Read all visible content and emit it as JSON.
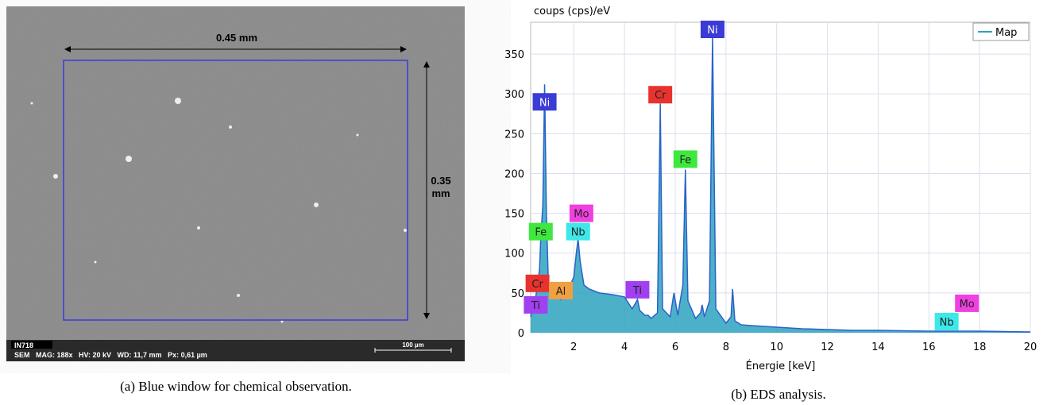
{
  "sem_image": {
    "width_label": "0.45 mm",
    "height_label": [
      "0.35",
      "mm"
    ],
    "sample": "IN718",
    "info": "SEM   MAG: 188x   HV: 20 kV   WD: 11,7 mm   Px: 0,61 µm",
    "scale": "100 µm"
  },
  "captions": [
    "(a) Blue window for chemical observation.",
    "(b) EDS analysis."
  ],
  "chart_data": {
    "type": "area",
    "ylabel": "coups (cps)/eV",
    "xlabel": "Énergie [keV]",
    "x": [
      0.3,
      0.4,
      0.5,
      0.57,
      0.65,
      0.7,
      0.78,
      0.85,
      0.92,
      1.0,
      1.2,
      1.4,
      1.49,
      1.6,
      1.8,
      2.0,
      2.1,
      2.17,
      2.25,
      2.4,
      2.6,
      3.0,
      3.5,
      4.0,
      4.3,
      4.45,
      4.51,
      4.6,
      4.8,
      4.93,
      5.05,
      5.3,
      5.41,
      5.5,
      5.8,
      5.95,
      6.1,
      6.3,
      6.4,
      6.5,
      6.8,
      7.0,
      7.06,
      7.15,
      7.35,
      7.47,
      7.6,
      8.0,
      8.2,
      8.26,
      8.35,
      8.6,
      9,
      10,
      11,
      12,
      13,
      14,
      16,
      18,
      20
    ],
    "series": [
      {
        "name": "Map",
        "color": "#2ea2bf",
        "values": [
          20,
          35,
          45,
          60,
          80,
          120,
          160,
          312,
          150,
          60,
          45,
          48,
          42,
          50,
          55,
          70,
          100,
          118,
          90,
          60,
          55,
          50,
          48,
          45,
          30,
          38,
          42,
          28,
          22,
          22,
          18,
          25,
          288,
          30,
          20,
          50,
          22,
          60,
          205,
          40,
          18,
          25,
          35,
          20,
          40,
          372,
          30,
          12,
          20,
          55,
          15,
          10,
          9,
          7,
          5,
          4,
          3,
          3,
          2,
          2,
          1
        ]
      }
    ],
    "xlim": [
      0.3,
      20
    ],
    "ylim": [
      0,
      390
    ],
    "xticks": [
      2,
      4,
      6,
      8,
      10,
      12,
      14,
      16,
      18,
      20
    ],
    "yticks": [
      0,
      50,
      100,
      150,
      200,
      250,
      300,
      350
    ],
    "grid": true,
    "legend": "top-right",
    "annotations": [
      {
        "text": "Ni",
        "x": 7.47,
        "y": 381,
        "color": "#3b3bd6"
      },
      {
        "text": "Ni",
        "x": 0.85,
        "y": 290,
        "color": "#3b3bd6"
      },
      {
        "text": "Cr",
        "x": 5.41,
        "y": 299,
        "color": "#e8322e"
      },
      {
        "text": "Fe",
        "x": 6.4,
        "y": 218,
        "color": "#3ee83e"
      },
      {
        "text": "Mo",
        "x": 2.3,
        "y": 150,
        "color": "#f040e0"
      },
      {
        "text": "Nb",
        "x": 2.17,
        "y": 127,
        "color": "#3ee8e8"
      },
      {
        "text": "Fe",
        "x": 0.7,
        "y": 127,
        "color": "#3ee83e"
      },
      {
        "text": "Cr",
        "x": 0.57,
        "y": 62,
        "color": "#e8322e"
      },
      {
        "text": "Al",
        "x": 1.49,
        "y": 53,
        "color": "#f0a040"
      },
      {
        "text": "Ti",
        "x": 4.51,
        "y": 54,
        "color": "#a040f0"
      },
      {
        "text": "Ti",
        "x": 0.5,
        "y": 35,
        "color": "#a040f0"
      },
      {
        "text": "Mo",
        "x": 17.5,
        "y": 37,
        "color": "#f040e0"
      },
      {
        "text": "Nb",
        "x": 16.7,
        "y": 14,
        "color": "#3ee8e8"
      }
    ]
  }
}
